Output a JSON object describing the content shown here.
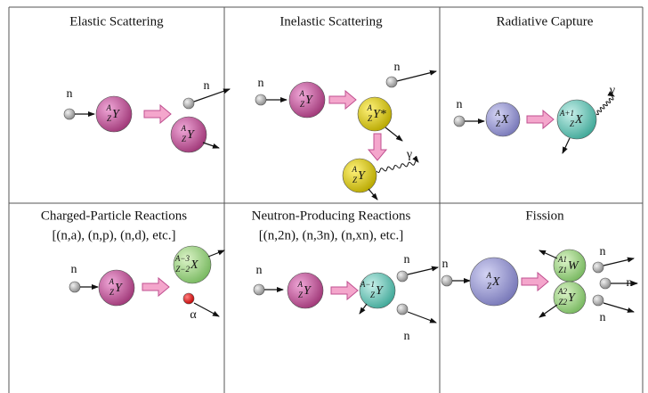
{
  "panels": [
    {
      "title": "Elastic Scattering",
      "neutron_in": "n",
      "target": {
        "mass": "A",
        "atomic": "Z",
        "symbol": "Y"
      },
      "neutron_out": "n",
      "product": {
        "mass": "A",
        "atomic": "Z",
        "symbol": "Y"
      }
    },
    {
      "title": "Inelastic Scattering",
      "neutron_in": "n",
      "target": {
        "mass": "A",
        "atomic": "Z",
        "symbol": "Y"
      },
      "neutron_out": "n",
      "excited": {
        "mass": "A",
        "atomic": "Z",
        "symbol": "Y*"
      },
      "product": {
        "mass": "A",
        "atomic": "Z",
        "symbol": "Y"
      },
      "gamma": "γ"
    },
    {
      "title": "Radiative Capture",
      "neutron_in": "n",
      "target": {
        "mass": "A",
        "atomic": "Z",
        "symbol": "X"
      },
      "product": {
        "mass": "A+1",
        "atomic": "Z",
        "symbol": "X"
      },
      "gamma": "γ"
    },
    {
      "title": "Charged-Particle Reactions",
      "subtitle": "[(n,a), (n,p), (n,d), etc.]",
      "neutron_in": "n",
      "target": {
        "mass": "A",
        "atomic": "Z",
        "symbol": "Y"
      },
      "product": {
        "mass": "A−3",
        "atomic": "Z−2",
        "symbol": "X"
      },
      "alpha": "α"
    },
    {
      "title": "Neutron-Producing Reactions",
      "subtitle": "[(n,2n), (n,3n), (n,xn), etc.]",
      "neutron_in": "n",
      "target": {
        "mass": "A",
        "atomic": "Z",
        "symbol": "Y"
      },
      "product": {
        "mass": "A−1",
        "atomic": "Z",
        "symbol": "Y"
      },
      "neutrons_out": [
        "n",
        "n"
      ]
    },
    {
      "title": "Fission",
      "neutron_in": "n",
      "target": {
        "mass": "A",
        "atomic": "Z",
        "symbol": "X"
      },
      "fragment_1": {
        "mass": "A1",
        "atomic": "Z1",
        "symbol": "W"
      },
      "fragment_2": {
        "mass": "A2",
        "atomic": "Z2",
        "symbol": "Y"
      },
      "neutrons_out": [
        "n",
        "n",
        "n"
      ]
    }
  ]
}
